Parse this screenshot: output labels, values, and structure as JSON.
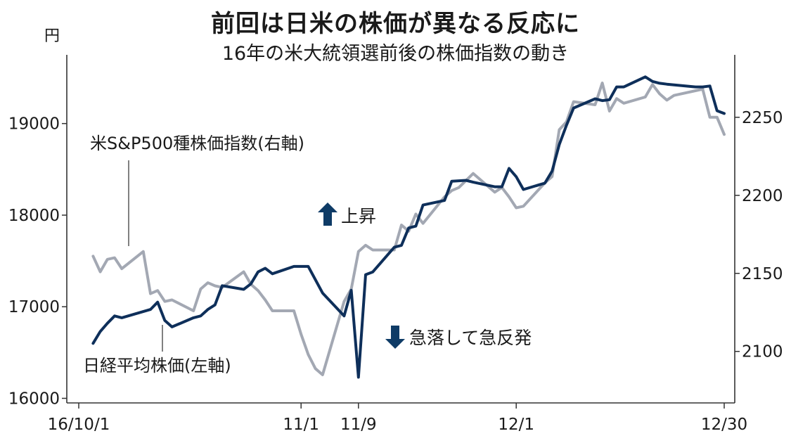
{
  "title": "前回は日米の株価が異なる反応に",
  "subtitle": "16年の米大統領選前後の株価指数の動き",
  "left_unit": "円",
  "annotations": {
    "sp500_label": "米S&P500種株価指数(右軸)",
    "nikkei_label": "日経平均株価(左軸)",
    "up_label": "上昇",
    "down_label": "急落して急反発"
  },
  "colors": {
    "nikkei": "#0e2f5a",
    "sp500": "#a3a8b3",
    "arrow": "#0e3b66",
    "axis": "#333333"
  },
  "chart_data": {
    "type": "line",
    "x_labels": [
      "16/10/1",
      "11/1",
      "11/9",
      "12/1",
      "12/30"
    ],
    "left_axis": {
      "ticks": [
        16000,
        17000,
        18000,
        19000
      ],
      "range": [
        15950,
        19750
      ]
    },
    "right_axis": {
      "ticks": [
        2100,
        2150,
        2200,
        2250
      ],
      "range": [
        2067,
        2290
      ]
    },
    "series": [
      {
        "name": "日経平均株価(左軸)",
        "axis": "left",
        "x": [
          "10/3",
          "10/4",
          "10/5",
          "10/6",
          "10/7",
          "10/11",
          "10/12",
          "10/13",
          "10/14",
          "10/17",
          "10/18",
          "10/19",
          "10/20",
          "10/21",
          "10/24",
          "10/25",
          "10/26",
          "10/27",
          "10/28",
          "10/31",
          "11/1",
          "11/2",
          "11/4",
          "11/7",
          "11/8",
          "11/9",
          "11/10",
          "11/11",
          "11/14",
          "11/15",
          "11/16",
          "11/17",
          "11/18",
          "11/21",
          "11/22",
          "11/24",
          "11/25",
          "11/28",
          "11/29",
          "11/30",
          "12/1",
          "12/2",
          "12/5",
          "12/6",
          "12/7",
          "12/8",
          "12/9",
          "12/12",
          "12/13",
          "12/14",
          "12/15",
          "12/16",
          "12/19",
          "12/20",
          "12/21",
          "12/22",
          "12/26",
          "12/27",
          "12/28",
          "12/29",
          "12/30"
        ],
        "values": [
          16600,
          16730,
          16820,
          16900,
          16880,
          16970,
          17050,
          16850,
          16780,
          16880,
          16900,
          16970,
          17020,
          17230,
          17190,
          17250,
          17380,
          17420,
          17360,
          17440,
          17440,
          17440,
          17150,
          16900,
          17180,
          16230,
          17350,
          17380,
          17650,
          17670,
          17860,
          17880,
          18110,
          18160,
          18370,
          18380,
          18360,
          18310,
          18310,
          18510,
          18420,
          18280,
          18350,
          18480,
          18770,
          18980,
          19170,
          19270,
          19250,
          19260,
          19400,
          19400,
          19510,
          19460,
          19440,
          19430,
          19400,
          19400,
          19410,
          19140,
          19110
        ]
      },
      {
        "name": "米S&P500種株価指数(右軸)",
        "axis": "right",
        "x": [
          "10/3",
          "10/4",
          "10/5",
          "10/6",
          "10/7",
          "10/10",
          "10/11",
          "10/12",
          "10/13",
          "10/14",
          "10/17",
          "10/18",
          "10/19",
          "10/20",
          "10/21",
          "10/24",
          "10/25",
          "10/26",
          "10/27",
          "10/28",
          "10/31",
          "11/1",
          "11/2",
          "11/3",
          "11/4",
          "11/7",
          "11/8",
          "11/9",
          "11/10",
          "11/11",
          "11/14",
          "11/15",
          "11/16",
          "11/17",
          "11/18",
          "11/21",
          "11/22",
          "11/23",
          "11/25",
          "11/28",
          "11/29",
          "11/30",
          "12/1",
          "12/2",
          "12/5",
          "12/6",
          "12/7",
          "12/8",
          "12/9",
          "12/12",
          "12/13",
          "12/14",
          "12/15",
          "12/16",
          "12/19",
          "12/20",
          "12/21",
          "12/22",
          "12/23",
          "12/27",
          "12/28",
          "12/29",
          "12/30"
        ],
        "values": [
          2161,
          2151,
          2159,
          2160,
          2153,
          2164,
          2137,
          2139,
          2132,
          2133,
          2126,
          2140,
          2144,
          2142,
          2141,
          2151,
          2143,
          2139,
          2133,
          2126,
          2126,
          2111,
          2098,
          2089,
          2085,
          2132,
          2140,
          2164,
          2168,
          2165,
          2165,
          2181,
          2177,
          2188,
          2182,
          2199,
          2203,
          2205,
          2214,
          2202,
          2205,
          2199,
          2192,
          2193,
          2208,
          2212,
          2242,
          2247,
          2260,
          2258,
          2272,
          2254,
          2262,
          2259,
          2263,
          2271,
          2265,
          2261,
          2264,
          2268,
          2250,
          2250,
          2239
        ]
      }
    ]
  }
}
